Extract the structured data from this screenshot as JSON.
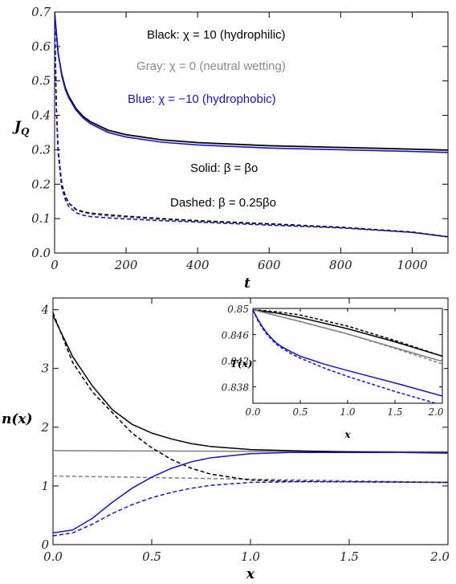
{
  "chart_data": [
    {
      "type": "line",
      "xlabel": "t",
      "ylabel_main": "J",
      "ylabel_sub": "Q",
      "xlim": [
        0,
        1100
      ],
      "ylim": [
        0,
        0.7
      ],
      "xticks": [
        "0",
        "200",
        "400",
        "600",
        "800",
        "1000"
      ],
      "yticks": [
        "0.0",
        "0.1",
        "0.2",
        "0.3",
        "0.4",
        "0.5",
        "0.6",
        "0.7"
      ],
      "annotations": [
        "Black: χ = 10 (hydrophilic)",
        "Gray:  χ = 0 (neutral wetting)",
        "Blue:  χ = −10 (hydrophobic)",
        "Solid: β = βo",
        "Dashed: β = 0.25βo"
      ],
      "series": [
        {
          "color": "#7f7f7f",
          "dash": "solid",
          "x": [
            0,
            5,
            10,
            20,
            30,
            40,
            60,
            80,
            100,
            150,
            200,
            300,
            400,
            600,
            800,
            1000,
            1100
          ],
          "y": [
            0.7,
            0.64,
            0.58,
            0.52,
            0.48,
            0.455,
            0.42,
            0.395,
            0.38,
            0.355,
            0.343,
            0.328,
            0.32,
            0.311,
            0.306,
            0.301,
            0.298
          ]
        },
        {
          "color": "#000000",
          "dash": "solid",
          "x": [
            0,
            5,
            10,
            20,
            30,
            40,
            60,
            80,
            100,
            150,
            200,
            300,
            400,
            600,
            800,
            1000,
            1100
          ],
          "y": [
            0.7,
            0.64,
            0.58,
            0.52,
            0.48,
            0.455,
            0.42,
            0.397,
            0.382,
            0.357,
            0.344,
            0.329,
            0.321,
            0.312,
            0.307,
            0.302,
            0.299
          ]
        },
        {
          "color": "#1414c8",
          "dash": "solid",
          "x": [
            0,
            5,
            10,
            20,
            30,
            40,
            60,
            80,
            100,
            150,
            200,
            300,
            400,
            600,
            800,
            1000,
            1100
          ],
          "y": [
            0.7,
            0.64,
            0.58,
            0.515,
            0.475,
            0.45,
            0.415,
            0.392,
            0.376,
            0.35,
            0.337,
            0.322,
            0.314,
            0.305,
            0.3,
            0.295,
            0.292
          ]
        },
        {
          "color": "#7f7f7f",
          "dash": "dashed",
          "x": [
            0,
            5,
            10,
            20,
            30,
            40,
            60,
            80,
            100,
            150,
            200,
            300,
            400,
            600,
            800,
            1000,
            1100
          ],
          "y": [
            0.7,
            0.42,
            0.3,
            0.2,
            0.165,
            0.145,
            0.125,
            0.118,
            0.113,
            0.108,
            0.104,
            0.097,
            0.092,
            0.083,
            0.074,
            0.06,
            0.047
          ]
        },
        {
          "color": "#000000",
          "dash": "dashed",
          "x": [
            0,
            5,
            10,
            20,
            30,
            40,
            60,
            80,
            100,
            150,
            200,
            300,
            400,
            600,
            800,
            1000,
            1100
          ],
          "y": [
            0.7,
            0.42,
            0.3,
            0.2,
            0.165,
            0.145,
            0.127,
            0.12,
            0.116,
            0.111,
            0.107,
            0.1,
            0.094,
            0.085,
            0.075,
            0.061,
            0.047
          ]
        },
        {
          "color": "#1414c8",
          "dash": "dashed",
          "x": [
            0,
            5,
            10,
            20,
            30,
            40,
            60,
            80,
            100,
            150,
            200,
            300,
            400,
            600,
            800,
            1000,
            1100
          ],
          "y": [
            0.7,
            0.41,
            0.29,
            0.19,
            0.155,
            0.135,
            0.117,
            0.11,
            0.106,
            0.102,
            0.099,
            0.094,
            0.09,
            0.081,
            0.073,
            0.06,
            0.047
          ]
        }
      ]
    },
    {
      "type": "line",
      "xlabel": "x",
      "ylabel": "n(x)",
      "xlim": [
        0,
        2
      ],
      "ylim": [
        0,
        4.2
      ],
      "xticks": [
        "0.0",
        "0.5",
        "1.0",
        "1.5",
        "2.0"
      ],
      "yticks": [
        "0",
        "1",
        "2",
        "3",
        "4"
      ],
      "series": [
        {
          "color": "#7f7f7f",
          "dash": "solid",
          "x": [
            0,
            2
          ],
          "y": [
            1.6,
            1.58
          ]
        },
        {
          "color": "#7f7f7f",
          "dash": "dashed",
          "x": [
            0,
            2
          ],
          "y": [
            1.17,
            1.06
          ]
        },
        {
          "color": "#000000",
          "dash": "solid",
          "x": [
            0,
            0.1,
            0.2,
            0.3,
            0.4,
            0.5,
            0.6,
            0.7,
            0.8,
            1.0,
            1.2,
            1.5,
            2.0
          ],
          "y": [
            3.9,
            3.2,
            2.7,
            2.3,
            2.05,
            1.9,
            1.8,
            1.72,
            1.67,
            1.62,
            1.6,
            1.58,
            1.56
          ]
        },
        {
          "color": "#000000",
          "dash": "dashed",
          "x": [
            0,
            0.1,
            0.2,
            0.3,
            0.4,
            0.5,
            0.6,
            0.7,
            0.8,
            1.0,
            1.2,
            1.5,
            2.0
          ],
          "y": [
            3.95,
            3.1,
            2.6,
            2.25,
            1.9,
            1.65,
            1.45,
            1.3,
            1.2,
            1.1,
            1.08,
            1.07,
            1.06
          ]
        },
        {
          "color": "#1414c8",
          "dash": "solid",
          "x": [
            0,
            0.1,
            0.2,
            0.3,
            0.4,
            0.5,
            0.6,
            0.7,
            0.8,
            1.0,
            1.2,
            1.5,
            2.0
          ],
          "y": [
            0.2,
            0.25,
            0.45,
            0.72,
            0.96,
            1.15,
            1.3,
            1.41,
            1.48,
            1.55,
            1.57,
            1.57,
            1.57
          ]
        },
        {
          "color": "#1414c8",
          "dash": "dashed",
          "x": [
            0,
            0.1,
            0.2,
            0.3,
            0.4,
            0.5,
            0.6,
            0.7,
            0.8,
            1.0,
            1.2,
            1.5,
            2.0
          ],
          "y": [
            0.15,
            0.2,
            0.35,
            0.53,
            0.68,
            0.8,
            0.89,
            0.96,
            1.01,
            1.06,
            1.07,
            1.07,
            1.06
          ]
        }
      ]
    },
    {
      "type": "line",
      "xlabel": "x",
      "ylabel": "T(x)",
      "xlim": [
        0,
        2
      ],
      "ylim": [
        0.8355,
        0.85
      ],
      "xticks": [
        "0.0",
        "0.5",
        "1.0",
        "1.5",
        "2.0"
      ],
      "yticks": [
        "0.838",
        "0.842",
        "0.846",
        "0.85"
      ],
      "series": [
        {
          "color": "#000000",
          "dash": "solid",
          "x": [
            0,
            0.25,
            0.5,
            1.0,
            1.5,
            2.0
          ],
          "y": [
            0.8498,
            0.8493,
            0.8486,
            0.8469,
            0.8449,
            0.8427
          ]
        },
        {
          "color": "#000000",
          "dash": "dashed",
          "x": [
            0,
            0.25,
            0.5,
            1.0,
            1.5,
            2.0
          ],
          "y": [
            0.8498,
            0.8495,
            0.849,
            0.8473,
            0.8451,
            0.8427
          ]
        },
        {
          "color": "#7f7f7f",
          "dash": "solid",
          "x": [
            0,
            0.25,
            0.5,
            1.0,
            1.5,
            2.0
          ],
          "y": [
            0.8498,
            0.8489,
            0.848,
            0.8461,
            0.844,
            0.8419
          ]
        },
        {
          "color": "#7f7f7f",
          "dash": "dashed",
          "x": [
            0,
            0.25,
            0.5,
            1.0,
            1.5,
            2.0
          ],
          "y": [
            0.8498,
            0.8489,
            0.848,
            0.8461,
            0.8439,
            0.8415
          ]
        },
        {
          "color": "#1414c8",
          "dash": "solid",
          "x": [
            0,
            0.05,
            0.1,
            0.15,
            0.2,
            0.25,
            0.3,
            0.4,
            0.5,
            0.75,
            1.0,
            1.5,
            2.0
          ],
          "y": [
            0.8498,
            0.8484,
            0.8472,
            0.8462,
            0.8454,
            0.8447,
            0.8442,
            0.8434,
            0.8427,
            0.8415,
            0.8405,
            0.8386,
            0.8366
          ]
        },
        {
          "color": "#1414c8",
          "dash": "dashed",
          "x": [
            0,
            0.05,
            0.1,
            0.15,
            0.2,
            0.25,
            0.3,
            0.4,
            0.5,
            0.75,
            1.0,
            1.5,
            2.0
          ],
          "y": [
            0.8498,
            0.8482,
            0.847,
            0.846,
            0.8452,
            0.8445,
            0.844,
            0.8431,
            0.8424,
            0.8409,
            0.8396,
            0.8373,
            0.8352
          ]
        }
      ]
    }
  ]
}
